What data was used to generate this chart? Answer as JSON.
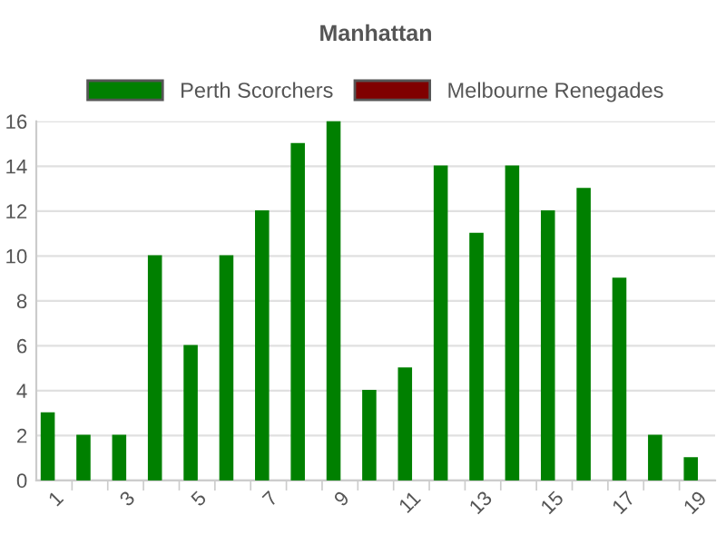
{
  "chart_data": {
    "type": "bar",
    "title": "Manhattan",
    "categories": [
      "1",
      null,
      "3",
      null,
      "5",
      null,
      "7",
      null,
      "9",
      null,
      "11",
      null,
      "13",
      null,
      "15",
      null,
      "17",
      null,
      "19"
    ],
    "series": [
      {
        "name": "Perth Scorchers",
        "color": "#008000",
        "values": [
          3,
          2,
          2,
          10,
          6,
          10,
          12,
          15,
          16,
          4,
          5,
          14,
          11,
          14,
          12,
          13,
          9,
          2,
          1
        ]
      },
      {
        "name": "Melbourne Renegades",
        "color": "#800000",
        "values": [
          null,
          null,
          null,
          null,
          null,
          null,
          null,
          null,
          null,
          null,
          null,
          null,
          null,
          null,
          null,
          null,
          null,
          null,
          null
        ]
      }
    ],
    "ylim": [
      0,
      16
    ],
    "yticks": [
      0,
      2,
      4,
      6,
      8,
      10,
      12,
      14,
      16
    ],
    "grid": "y",
    "legend": "top"
  }
}
